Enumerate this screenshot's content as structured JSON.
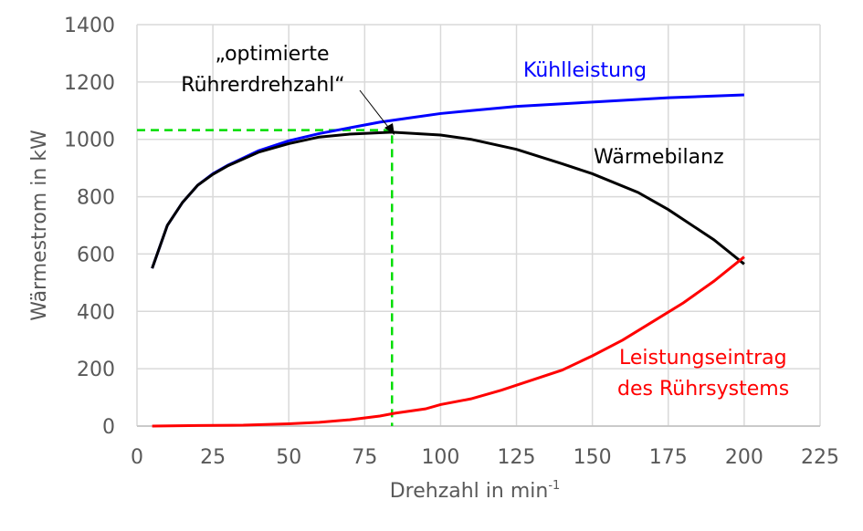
{
  "chart_data": {
    "type": "line",
    "xlabel": "Drehzahl in min",
    "xlabel_sup": "-1",
    "ylabel": "Wärmestrom in kW",
    "xlim": [
      0,
      225
    ],
    "ylim": [
      0,
      1400
    ],
    "xticks": [
      0,
      25,
      50,
      75,
      100,
      125,
      150,
      175,
      200,
      225
    ],
    "yticks": [
      0,
      200,
      400,
      600,
      800,
      1000,
      1200,
      1400
    ],
    "grid": true,
    "series": [
      {
        "name": "Kühlleistung",
        "color": "#0000ff",
        "x": [
          5,
          10,
          15,
          20,
          25,
          30,
          40,
          50,
          60,
          70,
          80,
          90,
          100,
          110,
          125,
          150,
          175,
          200
        ],
        "y": [
          550,
          700,
          780,
          840,
          880,
          910,
          960,
          995,
          1020,
          1040,
          1060,
          1075,
          1090,
          1100,
          1115,
          1130,
          1145,
          1155
        ]
      },
      {
        "name": "Wärmebilanz",
        "color": "#000000",
        "x": [
          5,
          10,
          15,
          20,
          25,
          30,
          40,
          50,
          60,
          70,
          84,
          100,
          110,
          125,
          140,
          150,
          165,
          175,
          190,
          200
        ],
        "y": [
          550,
          700,
          780,
          840,
          878,
          908,
          955,
          985,
          1008,
          1018,
          1025,
          1015,
          1000,
          965,
          915,
          880,
          815,
          755,
          650,
          565
        ]
      },
      {
        "name": "Leistungseintrag des Rührsystems",
        "color": "#ff0000",
        "x": [
          5,
          20,
          35,
          50,
          60,
          70,
          80,
          85,
          95,
          100,
          110,
          120,
          130,
          140,
          150,
          160,
          170,
          180,
          190,
          200
        ],
        "y": [
          0,
          2,
          3,
          8,
          13,
          22,
          35,
          45,
          60,
          75,
          95,
          125,
          160,
          195,
          245,
          300,
          365,
          430,
          505,
          590
        ]
      }
    ],
    "labels": {
      "kuehl": "Kühlleistung",
      "waerme": "Wärmebilanz",
      "leist1": "Leistungseintrag",
      "leist2": "des Rührsystems"
    },
    "annotation": {
      "line1": "„optimierte",
      "line2": "Rührerdrehzahl“",
      "x": 84,
      "y": 1032,
      "color": "#00dd00"
    }
  }
}
